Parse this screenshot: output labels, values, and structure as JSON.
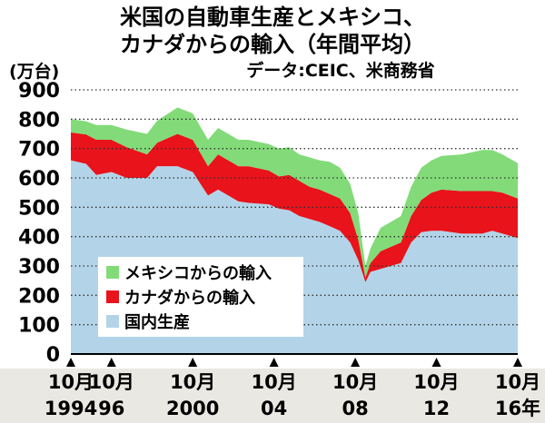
{
  "title_lines": [
    "米国の自動車生産とメキシコ、",
    "カナダからの輸入（年間平均）"
  ],
  "subtitle": "データ:CEIC、米商務省",
  "unit": "(万台)",
  "colors": {
    "domestic": "#b3d4e8",
    "canada": "#e8131b",
    "mexico": "#82db78",
    "axis_band": "#e9e8e2"
  },
  "chart_data": {
    "type": "area",
    "stacked": true,
    "ylim": [
      0,
      900
    ],
    "y_ticks": [
      0,
      100,
      200,
      300,
      400,
      500,
      600,
      700,
      800,
      900
    ],
    "x_ticks": [
      {
        "x": 1994.75,
        "line1": "10月",
        "line2": "1994"
      },
      {
        "x": 1996.75,
        "line1": "10月",
        "line2": "96"
      },
      {
        "x": 2000.75,
        "line1": "10月",
        "line2": "2000"
      },
      {
        "x": 2004.75,
        "line1": "10月",
        "line2": "04"
      },
      {
        "x": 2008.75,
        "line1": "10月",
        "line2": "08"
      },
      {
        "x": 2012.75,
        "line1": "10月",
        "line2": "12"
      },
      {
        "x": 2016.75,
        "line1": "10月",
        "line2": "16年"
      }
    ],
    "x": [
      1994.75,
      1995.5,
      1996.0,
      1996.75,
      1997.5,
      1998.5,
      1999.0,
      2000.0,
      2000.75,
      2001.5,
      2002.0,
      2003.0,
      2003.5,
      2004.5,
      2005.0,
      2005.5,
      2006.0,
      2006.5,
      2007.0,
      2007.5,
      2008.0,
      2008.5,
      2008.9,
      2009.25,
      2009.5,
      2010.0,
      2011.0,
      2011.5,
      2012.0,
      2012.5,
      2013.0,
      2014.0,
      2015.0,
      2015.5,
      2016.0,
      2016.75
    ],
    "series": [
      {
        "name": "国内生産",
        "values": [
          660,
          648,
          610,
          620,
          600,
          600,
          640,
          640,
          620,
          540,
          560,
          520,
          515,
          510,
          495,
          490,
          470,
          460,
          450,
          435,
          420,
          380,
          320,
          245,
          280,
          290,
          310,
          380,
          415,
          420,
          420,
          410,
          410,
          420,
          410,
          395
        ]
      },
      {
        "name": "カナダからの輸入",
        "values": [
          95,
          100,
          120,
          110,
          105,
          80,
          80,
          110,
          110,
          100,
          120,
          120,
          125,
          115,
          110,
          120,
          120,
          110,
          110,
          110,
          110,
          100,
          70,
          15,
          30,
          60,
          70,
          90,
          110,
          130,
          140,
          145,
          145,
          135,
          140,
          135
        ]
      },
      {
        "name": "メキシコからの輸入",
        "values": [
          45,
          45,
          50,
          50,
          60,
          70,
          75,
          90,
          90,
          90,
          90,
          90,
          90,
          90,
          95,
          95,
          90,
          100,
          100,
          110,
          105,
          100,
          90,
          40,
          50,
          80,
          90,
          100,
          110,
          110,
          115,
          125,
          140,
          140,
          130,
          120
        ]
      }
    ],
    "legend": [
      "メキシコからの輸入",
      "カナダからの輸入",
      "国内生産"
    ],
    "legend_position": "inside-left",
    "grid": "dotted-horizontal"
  }
}
